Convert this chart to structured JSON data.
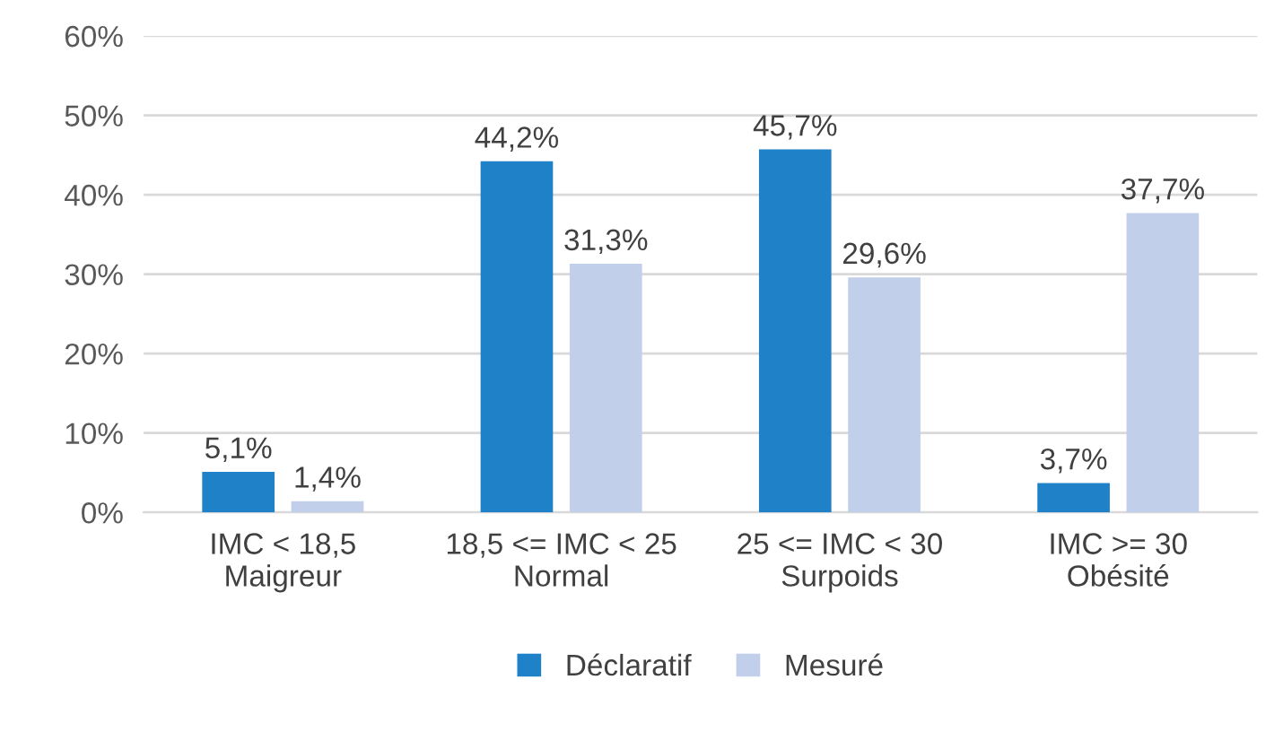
{
  "chart_data": {
    "type": "bar",
    "categories": [
      "IMC < 18,5\nMaigreur",
      "18,5 <= IMC < 25\nNormal",
      "25 <= IMC < 30\nSurpoids",
      "IMC >= 30\nObésité"
    ],
    "series": [
      {
        "name": "Déclaratif",
        "color": "#1f82c8",
        "values": [
          5.1,
          44.2,
          45.7,
          3.7
        ],
        "value_labels": [
          "5,1%",
          "44,2%",
          "45,7%",
          "3,7%"
        ]
      },
      {
        "name": "Mesuré",
        "color": "#c1cfea",
        "values": [
          1.4,
          31.3,
          29.6,
          37.7
        ],
        "value_labels": [
          "1,4%",
          "31,3%",
          "29,6%",
          "37,7%"
        ]
      }
    ],
    "ylim": [
      0,
      60
    ],
    "yticks": [
      {
        "value": 0,
        "label": "0%"
      },
      {
        "value": 10,
        "label": "10%"
      },
      {
        "value": 20,
        "label": "20%"
      },
      {
        "value": 30,
        "label": "30%"
      },
      {
        "value": 40,
        "label": "40%"
      },
      {
        "value": 50,
        "label": "50%"
      },
      {
        "value": 60,
        "label": "60%"
      }
    ],
    "grid": "y",
    "legend": "bottom"
  }
}
